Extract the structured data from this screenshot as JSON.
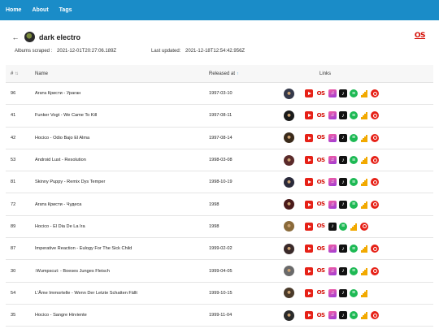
{
  "nav": {
    "home": "Home",
    "about": "About",
    "tags": "Tags"
  },
  "tag": {
    "title": "dark electro",
    "lastfm": "OS"
  },
  "meta": {
    "scraped_label": "Albums scraped :",
    "scraped_value": "2021-12-01T20:27:06.189Z",
    "updated_label": "Last updated:",
    "updated_value": "2021-12-18T12:54:42.956Z"
  },
  "table": {
    "headers": {
      "num": "#",
      "name": "Name",
      "released": "Released at",
      "links": "Links"
    },
    "rows": [
      {
        "num": "96",
        "name": "Агата Кристи - Ураган",
        "date": "1997-03-10",
        "thumb": "#35394a",
        "links": [
          "yt",
          "lfm",
          "itunes",
          "apple",
          "spot",
          "deezer",
          "ytm"
        ]
      },
      {
        "num": "41",
        "name": "Funker Vogt - We Came To Kill",
        "date": "1997-08-11",
        "thumb": "#1a1a1a",
        "links": [
          "yt",
          "lfm",
          "itunes",
          "apple",
          "spot",
          "deezer",
          "ytm"
        ]
      },
      {
        "num": "42",
        "name": "Hocico - Odio Bajo El Alma",
        "date": "1997-08-14",
        "thumb": "#3a2a1a",
        "links": [
          "yt",
          "lfm",
          "itunes",
          "apple",
          "spot",
          "deezer",
          "ytm"
        ]
      },
      {
        "num": "53",
        "name": "Android Lust - Resolution",
        "date": "1998-03-08",
        "thumb": "#5a2a2a",
        "links": [
          "yt",
          "lfm",
          "itunes",
          "apple",
          "spot",
          "deezer",
          "ytm"
        ]
      },
      {
        "num": "81",
        "name": "Skinny Puppy - Remix Dys Temper",
        "date": "1998-10-19",
        "thumb": "#2a2a3a",
        "links": [
          "yt",
          "lfm",
          "itunes",
          "apple",
          "spot",
          "deezer",
          "ytm"
        ]
      },
      {
        "num": "72",
        "name": "Агата Кристи - Чудеса",
        "date": "1998",
        "thumb": "#4a1a1a",
        "links": [
          "yt",
          "lfm",
          "itunes",
          "apple",
          "spot",
          "deezer",
          "ytm"
        ]
      },
      {
        "num": "89",
        "name": "Hocico - El Dia De La Ira",
        "date": "1998",
        "thumb": "#8a6a3a",
        "links": [
          "yt",
          "lfm",
          "apple",
          "spot",
          "deezer",
          "ytm"
        ]
      },
      {
        "num": "87",
        "name": "Imperative Reaction - Eulogy For The Sick Child",
        "date": "1999-02-02",
        "thumb": "#3a2a2a",
        "links": [
          "yt",
          "lfm",
          "itunes",
          "apple",
          "spot",
          "deezer",
          "ytm"
        ]
      },
      {
        "num": "30",
        "name": ":Wumpscut: - Boeses Junges Fleisch",
        "date": "1999-04-05",
        "thumb": "#6a6a6a",
        "links": [
          "yt",
          "lfm",
          "itunes",
          "apple",
          "spot",
          "deezer",
          "ytm"
        ]
      },
      {
        "num": "54",
        "name": "L'Âme Immortelle - Wenn Der Letzte Schatten Fällt",
        "date": "1999-10-15",
        "thumb": "#4a3a2a",
        "links": [
          "yt",
          "lfm",
          "itunes",
          "apple",
          "spot",
          "deezer"
        ]
      },
      {
        "num": "35",
        "name": "Hocico - Sangre Hirviente",
        "date": "1999-11-04",
        "thumb": "#2a2a2a",
        "links": [
          "yt",
          "lfm",
          "itunes",
          "apple",
          "spot",
          "deezer",
          "ytm"
        ]
      }
    ]
  },
  "colors": {
    "navbar": "#1a8cc8",
    "lastfm": "#d51007",
    "sort_active": "#1a8cc8"
  }
}
